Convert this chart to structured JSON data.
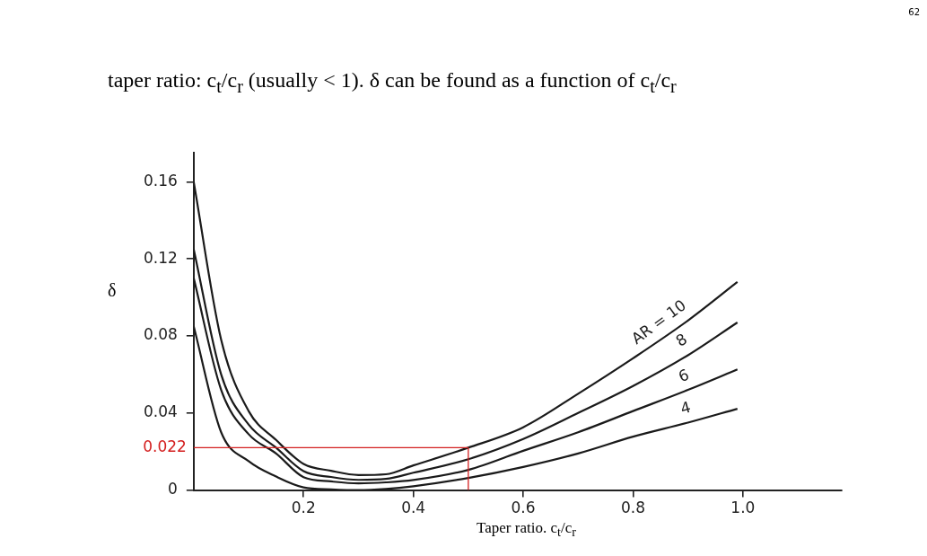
{
  "chart_data": {
    "type": "line",
    "title": "taper ratio: c$_{t}$/c$_{r}$ (usually < 1). δ can be found as a function of c$_{t}$/c$_{r}$",
    "xlabel": "Taper ratio. c$_{t}$/c$_{r}$",
    "ylabel": "δ",
    "x": [
      0,
      0.05,
      0.1,
      0.15,
      0.2,
      0.25,
      0.3,
      0.35,
      0.4,
      0.5,
      0.6,
      0.7,
      0.8,
      0.9,
      0.99
    ],
    "series": [
      {
        "name": "AR = 10",
        "color": "#1a1a1a",
        "values": [
          0.16,
          0.078,
          0.041,
          0.026,
          0.0136,
          0.01,
          0.0078,
          0.0082,
          0.0128,
          0.022,
          0.0326,
          0.05,
          0.0684,
          0.088,
          0.108
        ]
      },
      {
        "name": "8",
        "color": "#1a1a1a",
        "values": [
          0.125,
          0.06,
          0.034,
          0.022,
          0.0098,
          0.0068,
          0.0053,
          0.0058,
          0.009,
          0.016,
          0.0265,
          0.04,
          0.054,
          0.07,
          0.087
        ]
      },
      {
        "name": "6",
        "color": "#1a1a1a",
        "values": [
          0.11,
          0.052,
          0.029,
          0.019,
          0.0067,
          0.0045,
          0.0035,
          0.004,
          0.0052,
          0.0105,
          0.0204,
          0.03,
          0.041,
          0.052,
          0.0626
        ]
      },
      {
        "name": "4",
        "color": "#1a1a1a",
        "values": [
          0.085,
          0.03,
          0.015,
          0.007,
          0.0014,
          0.0004,
          0,
          0.0006,
          0.002,
          0.0063,
          0.012,
          0.019,
          0.0277,
          0.035,
          0.0422
        ]
      }
    ],
    "ref_lines": [
      {
        "axis": "y",
        "value": 0.022,
        "label": "0.022",
        "color": "#d42020"
      },
      {
        "axis": "x",
        "value": 0.5,
        "color": "#d42020"
      }
    ],
    "xlim": [
      0,
      1.18
    ],
    "xticks": [
      0.2,
      0.4,
      0.6,
      0.8,
      {
        "value": 1.0,
        "label": "1.0"
      }
    ],
    "ylim": [
      0,
      0.175
    ],
    "yticks": [
      0,
      0.04,
      0.08,
      0.12,
      0.16
    ],
    "marker": "none",
    "line_style": "solid",
    "legend": false,
    "grid": false,
    "annotations": [
      "62"
    ]
  }
}
